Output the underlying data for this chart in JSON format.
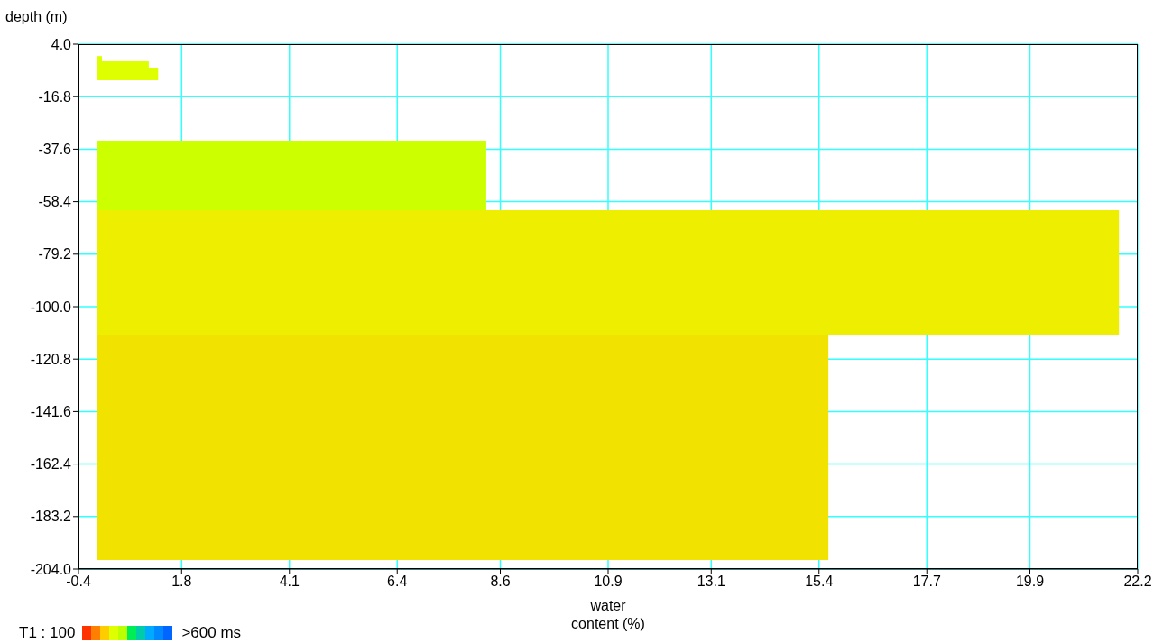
{
  "chart_data": {
    "type": "histogram",
    "orientation": "horizontal",
    "xlabel": "water\ncontent (%)",
    "ylabel": "depth (m)",
    "bins": [
      -0.7,
      -2.8,
      -5.3,
      -10.3,
      -34.2,
      -61.8,
      -111.4,
      -200.4
    ],
    "values": [
      0.1,
      1.1,
      1.3,
      null,
      8.3,
      21.8,
      15.6
    ],
    "colors": [
      "#ddff00",
      "#ddff00",
      "#ddff00",
      null,
      "#ccff00",
      "#eeee00",
      "#f2e200"
    ],
    "xlim": [
      -0.4,
      22.2
    ],
    "xticks": [
      -0.4,
      1.8,
      4.1,
      6.4,
      8.6,
      10.9,
      13.1,
      15.4,
      17.7,
      19.9,
      22.2
    ],
    "ylim": [
      -204,
      4
    ],
    "yticks": [
      {
        "value": 4,
        "label": "4.0"
      },
      -16.8,
      -37.6,
      -58.4,
      -79.2,
      {
        "value": -100,
        "label": "-100.0"
      },
      -120.8,
      -141.6,
      -162.4,
      -183.2,
      {
        "value": -204,
        "label": "-204.0"
      }
    ],
    "grid": true,
    "annotations": [
      "T1 : 100",
      ">600 ms"
    ]
  }
}
